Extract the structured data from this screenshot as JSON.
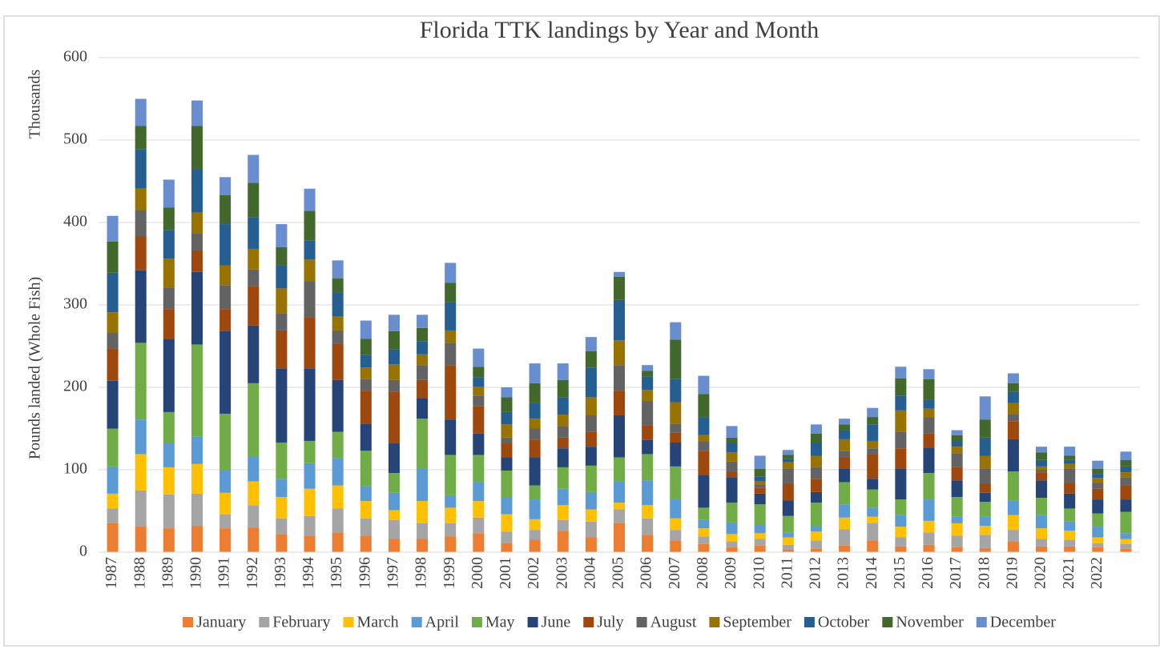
{
  "chart_data": {
    "type": "stacked_bar",
    "title": "Florida TTK landings by Year and Month",
    "y_axis_label": "Pounds landed (Whole Fish)",
    "y_unit_label": "Thousands",
    "categories": [
      "1987",
      "1988",
      "1989",
      "1990",
      "1991",
      "1992",
      "1993",
      "1994",
      "1995",
      "1996",
      "1997",
      "1998",
      "1999",
      "2000",
      "2001",
      "2002",
      "2003",
      "2004",
      "2005",
      "2006",
      "2007",
      "2008",
      "2009",
      "2010",
      "2011",
      "2012",
      "2013",
      "2014",
      "2015",
      "2016",
      "2017",
      "2018",
      "2019",
      "2020",
      "2021",
      "2022",
      null
    ],
    "ylim": [
      0,
      600
    ],
    "yticks": [
      0,
      100,
      200,
      300,
      400,
      500,
      600
    ],
    "grid": true,
    "legend": "bottom",
    "series": [
      {
        "name": "January",
        "color": "#ed7d31",
        "values": [
          35,
          31,
          29,
          32,
          29,
          30,
          22,
          20,
          24,
          20,
          16,
          16,
          19,
          23,
          11,
          15,
          26,
          18,
          35,
          21,
          14,
          10,
          6,
          8,
          3,
          4,
          8,
          14,
          7,
          9,
          6,
          5,
          13,
          7,
          7,
          6,
          4
        ]
      },
      {
        "name": "February",
        "color": "#a5a5a5",
        "values": [
          18,
          44,
          41,
          39,
          17,
          27,
          19,
          24,
          29,
          21,
          23,
          19,
          16,
          19,
          14,
          12,
          13,
          19,
          17,
          20,
          13,
          9,
          7,
          8,
          6,
          10,
          20,
          21,
          11,
          15,
          14,
          16,
          14,
          9,
          8,
          5,
          6
        ]
      },
      {
        "name": "March",
        "color": "#ffc000",
        "values": [
          18,
          44,
          33,
          36,
          26,
          29,
          26,
          33,
          28,
          21,
          12,
          27,
          19,
          20,
          21,
          13,
          18,
          15,
          8,
          16,
          14,
          10,
          9,
          7,
          9,
          11,
          14,
          8,
          13,
          14,
          15,
          11,
          18,
          13,
          11,
          7,
          6
        ]
      },
      {
        "name": "April",
        "color": "#5b9bd5",
        "values": [
          33,
          42,
          30,
          33,
          27,
          30,
          22,
          31,
          33,
          18,
          21,
          39,
          15,
          23,
          20,
          24,
          20,
          21,
          26,
          30,
          24,
          10,
          14,
          11,
          6,
          7,
          16,
          11,
          14,
          26,
          8,
          11,
          18,
          16,
          11,
          13,
          7
        ]
      },
      {
        "name": "May",
        "color": "#70ad47",
        "values": [
          46,
          93,
          37,
          112,
          69,
          89,
          44,
          27,
          32,
          43,
          24,
          61,
          49,
          33,
          33,
          17,
          26,
          32,
          29,
          32,
          39,
          15,
          24,
          24,
          20,
          28,
          27,
          22,
          19,
          32,
          24,
          18,
          35,
          21,
          16,
          16,
          26
        ]
      },
      {
        "name": "June",
        "color": "#264478",
        "values": [
          58,
          88,
          89,
          88,
          100,
          70,
          90,
          88,
          63,
          33,
          36,
          25,
          43,
          26,
          16,
          34,
          23,
          23,
          51,
          17,
          29,
          40,
          31,
          13,
          19,
          13,
          16,
          13,
          37,
          31,
          20,
          11,
          39,
          21,
          18,
          17,
          15
        ]
      },
      {
        "name": "July",
        "color": "#9e480e",
        "values": [
          39,
          41,
          36,
          26,
          27,
          48,
          46,
          62,
          44,
          40,
          63,
          22,
          66,
          33,
          17,
          21,
          13,
          18,
          30,
          18,
          12,
          29,
          7,
          7,
          20,
          16,
          14,
          30,
          25,
          17,
          16,
          11,
          22,
          10,
          13,
          13,
          17
        ]
      },
      {
        "name": "August",
        "color": "#636363",
        "values": [
          19,
          32,
          26,
          21,
          29,
          20,
          21,
          44,
          16,
          14,
          14,
          18,
          27,
          13,
          7,
          14,
          14,
          20,
          31,
          29,
          11,
          11,
          12,
          4,
          18,
          14,
          8,
          7,
          20,
          20,
          17,
          18,
          8,
          3,
          17,
          7,
          10
        ]
      },
      {
        "name": "September",
        "color": "#997300",
        "values": [
          25,
          26,
          35,
          25,
          24,
          25,
          30,
          26,
          17,
          14,
          19,
          13,
          15,
          11,
          16,
          12,
          14,
          22,
          30,
          14,
          26,
          8,
          11,
          4,
          8,
          14,
          14,
          9,
          26,
          10,
          8,
          16,
          14,
          4,
          6,
          6,
          6
        ]
      },
      {
        "name": "October",
        "color": "#255e91",
        "values": [
          48,
          48,
          35,
          53,
          50,
          38,
          28,
          23,
          29,
          15,
          18,
          16,
          34,
          11,
          15,
          19,
          21,
          36,
          49,
          16,
          28,
          22,
          12,
          6,
          4,
          16,
          11,
          20,
          18,
          11,
          6,
          22,
          14,
          8,
          5,
          5,
          7
        ]
      },
      {
        "name": "November",
        "color": "#43682b",
        "values": [
          38,
          28,
          27,
          52,
          35,
          42,
          22,
          36,
          17,
          20,
          22,
          16,
          24,
          13,
          18,
          24,
          21,
          20,
          28,
          7,
          48,
          28,
          6,
          9,
          5,
          11,
          7,
          9,
          21,
          25,
          8,
          22,
          10,
          9,
          5,
          6,
          8
        ]
      },
      {
        "name": "December",
        "color": "#698ed0",
        "values": [
          31,
          33,
          34,
          31,
          22,
          34,
          28,
          27,
          22,
          22,
          20,
          16,
          24,
          22,
          12,
          24,
          20,
          17,
          6,
          7,
          21,
          22,
          14,
          16,
          6,
          11,
          7,
          11,
          14,
          12,
          6,
          28,
          12,
          7,
          11,
          10,
          10
        ]
      }
    ]
  }
}
